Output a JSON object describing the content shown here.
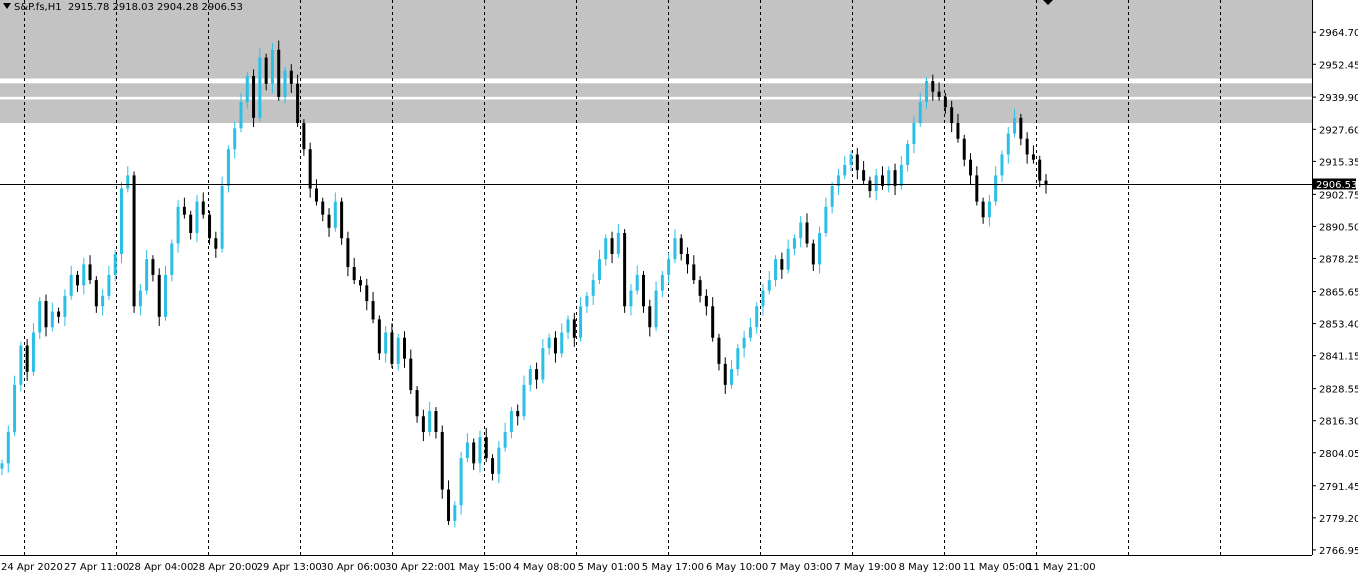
{
  "header": {
    "symbol": "S&P.fs,H1",
    "ohlc": "2915.78 2918.03 2904.28 2906.53"
  },
  "colors": {
    "bull": "#2bbfe6",
    "bear": "#000000",
    "zone": "#c3c3c3",
    "grid": "#000000",
    "bg": "#ffffff"
  },
  "current_price_label": "2906.53",
  "chart_data": {
    "type": "candlestick",
    "title": "S&P.fs,H1",
    "ylim": [
      2765,
      2977
    ],
    "y_ticks": [
      "2964.70",
      "2952.45",
      "2939.90",
      "2927.60",
      "2915.35",
      "2902.75",
      "2890.50",
      "2878.25",
      "2865.65",
      "2853.40",
      "2841.15",
      "2828.55",
      "2816.30",
      "2804.05",
      "2791.45",
      "2779.20",
      "2766.95"
    ],
    "x_ticks": [
      "24 Apr 2020",
      "27 Apr 11:00",
      "28 Apr 04:00",
      "28 Apr 20:00",
      "29 Apr 13:00",
      "30 Apr 06:00",
      "30 Apr 22:00",
      "1 May 15:00",
      "4 May 08:00",
      "5 May 01:00",
      "5 May 17:00",
      "6 May 10:00",
      "7 May 03:00",
      "7 May 19:00",
      "8 May 12:00",
      "11 May 05:00",
      "11 May 21:00"
    ],
    "current_price": 2906.53,
    "resistance_zones": [
      {
        "from": 2947.0,
        "to": 2977.0
      },
      {
        "from": 2940.0,
        "to": 2945.2
      },
      {
        "from": 2930.0,
        "to": 2939.0
      }
    ],
    "close_path": [
      2800,
      2812,
      2830,
      2845,
      2835,
      2850,
      2862,
      2852,
      2858,
      2856,
      2864,
      2872,
      2868,
      2876,
      2870,
      2860,
      2864,
      2872,
      2880,
      2905,
      2910,
      2860,
      2866,
      2878,
      2872,
      2856,
      2872,
      2884,
      2898,
      2895,
      2888,
      2900,
      2895,
      2886,
      2882,
      2906,
      2920,
      2928,
      2938,
      2948,
      2932,
      2955,
      2945,
      2958,
      2940,
      2950,
      2945,
      2930,
      2920,
      2905,
      2900,
      2895,
      2890,
      2900,
      2886,
      2875,
      2870,
      2868,
      2862,
      2855,
      2842,
      2850,
      2838,
      2848,
      2840,
      2828,
      2818,
      2812,
      2820,
      2812,
      2790,
      2778,
      2784,
      2802,
      2808,
      2800,
      2810,
      2802,
      2796,
      2806,
      2812,
      2820,
      2818,
      2830,
      2836,
      2832,
      2844,
      2848,
      2842,
      2850,
      2855,
      2848,
      2860,
      2864,
      2870,
      2878,
      2886,
      2880,
      2888,
      2860,
      2866,
      2872,
      2860,
      2852,
      2866,
      2872,
      2878,
      2886,
      2880,
      2876,
      2870,
      2864,
      2860,
      2848,
      2838,
      2830,
      2836,
      2844,
      2848,
      2852,
      2860,
      2866,
      2870,
      2878,
      2874,
      2882,
      2886,
      2892,
      2884,
      2876,
      2888,
      2898,
      2906,
      2910,
      2914,
      2918,
      2912,
      2908,
      2904,
      2910,
      2906,
      2912,
      2906,
      2914,
      2922,
      2930,
      2938,
      2946,
      2942,
      2940,
      2936,
      2930,
      2924,
      2916,
      2910,
      2900,
      2894,
      2900,
      2910,
      2918,
      2926,
      2932,
      2924,
      2918,
      2916,
      2908,
      2906.53
    ],
    "x_labels": [
      "24 Apr 2020",
      "27 Apr 11:00",
      "28 Apr 04:00",
      "28 Apr 20:00",
      "29 Apr 13:00",
      "30 Apr 06:00",
      "30 Apr 22:00",
      "1 May 15:00",
      "4 May 08:00",
      "5 May 01:00",
      "5 May 17:00",
      "6 May 10:00",
      "7 May 03:00",
      "7 May 19:00",
      "8 May 12:00",
      "11 May 05:00",
      "11 May 21:00"
    ]
  }
}
